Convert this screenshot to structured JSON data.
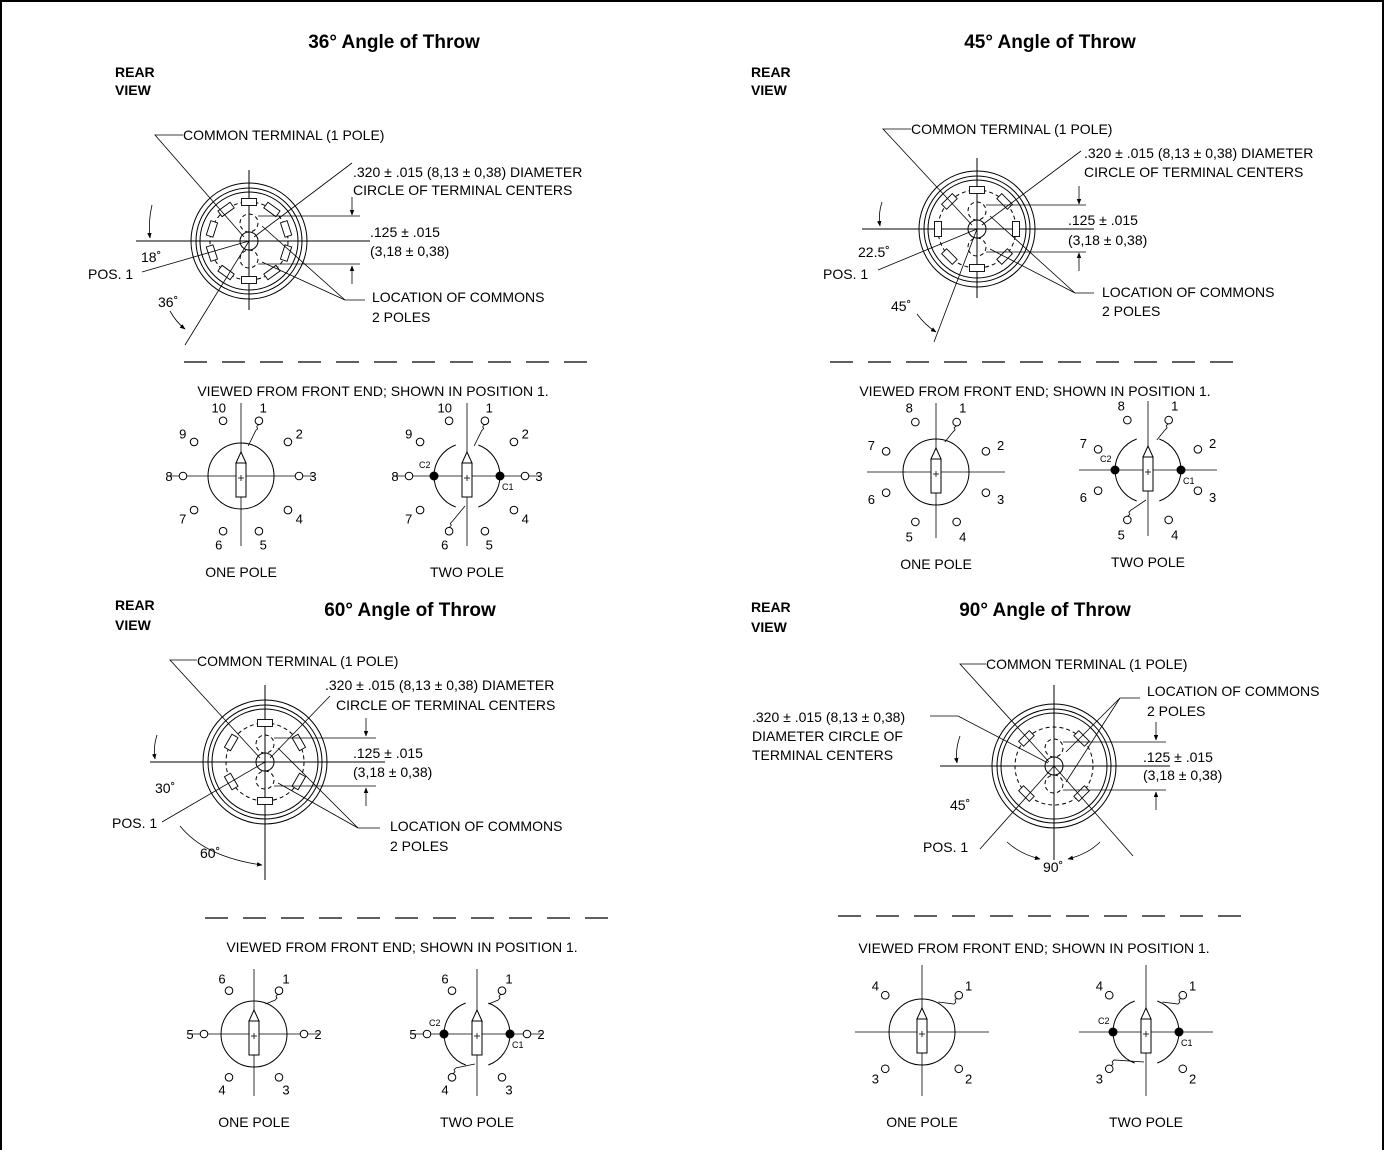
{
  "common": {
    "rear_view": [
      "REAR",
      "VIEW"
    ],
    "viewed_caption": "VIEWED FROM FRONT END;  SHOWN IN POSITION 1.",
    "one_pole": "ONE POLE",
    "two_pole": "TWO POLE",
    "common_terminal": "COMMON TERMINAL (1 POLE)",
    "diameter_line1": ".320 ± .015 (8,13 ± 0,38) DIAMETER",
    "diameter_line2": "CIRCLE OF TERMINAL CENTERS",
    "diameter_alt": [
      ".320 ± .015 (8,13 ± 0,38)",
      "DIAMETER CIRCLE OF",
      "TERMINAL CENTERS"
    ],
    "offset_line1": ".125 ± .015",
    "offset_line2": "(3,18 ± 0,38)",
    "commons_line1": "LOCATION OF COMMONS",
    "commons_line2": "2 POLES",
    "pos1": "POS. 1",
    "c1": "C1",
    "c2": "C2"
  },
  "panels": [
    {
      "title": "36° Angle of Throw",
      "half_angle": "18˚",
      "throw": "36˚",
      "positions": [
        "1",
        "2",
        "3",
        "4",
        "5",
        "6",
        "7",
        "8",
        "9",
        "10"
      ]
    },
    {
      "title": "45° Angle of Throw",
      "half_angle": "22.5˚",
      "throw": "45˚",
      "positions": [
        "1",
        "2",
        "3",
        "4",
        "5",
        "6",
        "7",
        "8"
      ]
    },
    {
      "title": "60° Angle of Throw",
      "half_angle": "30˚",
      "throw": "60˚",
      "positions": [
        "1",
        "2",
        "3",
        "4",
        "5",
        "6"
      ]
    },
    {
      "title": "90° Angle of Throw",
      "half_angle": "45˚",
      "throw": "90˚",
      "positions": [
        "1",
        "2",
        "3",
        "4"
      ]
    }
  ]
}
